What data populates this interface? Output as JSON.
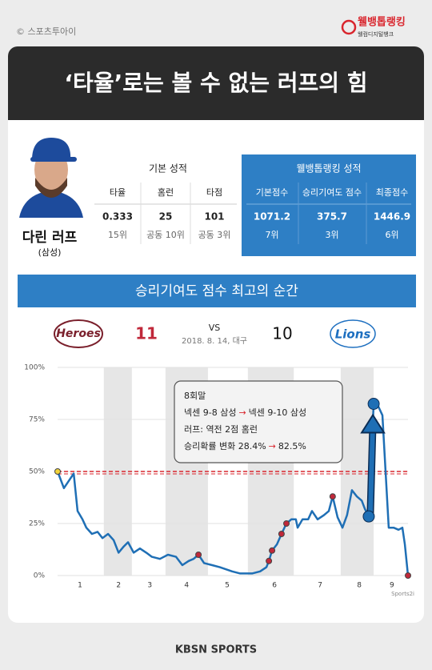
{
  "header": {
    "copyright": "© 스포츠투아이",
    "logo": "웰뱅톱랭킹",
    "logo_sub": "웰컴디지털뱅크"
  },
  "title": "‘타율’로는 볼 수 없는 러프의 힘",
  "player": {
    "name": "다린 러프",
    "team": "(삼성)"
  },
  "basic_stats": {
    "title": "기본 성적",
    "headers": [
      "타율",
      "홈런",
      "타점"
    ],
    "values": [
      0.333,
      25,
      101
    ],
    "ranks": [
      "15위",
      "공동 10위",
      "공동 3위"
    ]
  },
  "ranking_stats": {
    "title": "웰뱅톱랭킹 성적",
    "headers": [
      "기본점수",
      "승리기여도 점수",
      "최종점수"
    ],
    "values": [
      1071.2,
      375.7,
      1446.9
    ],
    "ranks": [
      "7위",
      "3위",
      "6위"
    ]
  },
  "banner": "승리기여도 점수 최고의 순간",
  "game": {
    "away_logo": "Heroes",
    "away_score": 11,
    "vs": "VS",
    "date": "2018. 8. 14, 대구",
    "home_score": 10,
    "home_logo": "Lions"
  },
  "chart_data": {
    "type": "line",
    "color": "#1f6fb5",
    "x": [
      0,
      1.8,
      4.6,
      5.7,
      7.1,
      8.2,
      9.8,
      11.4,
      12.8,
      14.4,
      16.0,
      17.4,
      18.9,
      20.1,
      21.7,
      23.5,
      25.3,
      26.9,
      29.2,
      31.5,
      33.8,
      35.6,
      37.4,
      38.8,
      40.2,
      41.8,
      44.1,
      46.3,
      49.8,
      52.1,
      55.5,
      57.8,
      59.6,
      60.3,
      61.2,
      62.6,
      63.9,
      65.3,
      66.7,
      68.0,
      68.5,
      69.9,
      71.5,
      72.6,
      74.2,
      76.0,
      77.4,
      78.5,
      79.9,
      81.3,
      82.6,
      84.0,
      85.4,
      86.8,
      87.7,
      88.8,
      90.2,
      91.6,
      92.7,
      93.6,
      94.5,
      95.9,
      97.3,
      98.4,
      99.1,
      100
    ],
    "values": [
      50,
      42,
      49,
      31,
      27,
      23,
      20,
      21,
      18,
      20,
      17,
      11,
      14,
      16,
      11,
      13,
      11,
      9,
      8,
      10,
      9,
      5,
      7,
      8,
      10,
      6,
      5,
      4,
      2,
      1,
      1,
      2,
      4,
      7,
      12,
      15,
      20,
      25,
      27,
      27,
      23,
      27,
      27,
      31,
      27,
      29,
      31,
      38,
      28,
      23,
      29,
      41,
      38,
      36,
      32,
      28.4,
      82.5,
      81,
      77,
      50,
      23,
      23,
      22,
      23,
      15,
      0
    ],
    "markers": {
      "#f2d43a": [
        0
      ],
      "#c0283a": [
        24,
        33,
        34,
        36,
        37,
        47,
        65
      ],
      "#1f6fb5": [
        55,
        56
      ]
    },
    "reference_line": 50,
    "reference_color": "#d9262e",
    "xlim": [
      0,
      100
    ],
    "ylim": [
      0,
      100
    ],
    "yticks": [
      {
        "value": 0,
        "label": "0%"
      },
      {
        "value": 25,
        "label": "25%"
      },
      {
        "value": 50,
        "label": "50%"
      },
      {
        "value": 75,
        "label": "75%"
      },
      {
        "value": 100,
        "label": "100%"
      }
    ],
    "xticks": [
      {
        "value": 6.4,
        "label": "1"
      },
      {
        "value": 17.4,
        "label": "2"
      },
      {
        "value": 26.3,
        "label": "3"
      },
      {
        "value": 36.8,
        "label": "4"
      },
      {
        "value": 48.4,
        "label": "5"
      },
      {
        "value": 61.9,
        "label": "6"
      },
      {
        "value": 74.9,
        "label": "7"
      },
      {
        "value": 86.1,
        "label": "8"
      },
      {
        "value": 95.4,
        "label": "9"
      }
    ],
    "shaded_ranges": [
      [
        13.2,
        21.2
      ],
      [
        30.8,
        42.9
      ],
      [
        54.3,
        67.4
      ],
      [
        80.8,
        90.2
      ]
    ],
    "source": "Sports2i",
    "annotation": [
      [
        "8회말"
      ],
      [
        "넥센 9-8 삼성",
        "→",
        "넥센 9-10 삼성"
      ],
      [
        "러프: 역전 2점 홈런"
      ],
      [
        "승리확률 변화 28.4%",
        "→",
        "82.5%"
      ]
    ]
  },
  "footer": "KBSN SPORTS"
}
